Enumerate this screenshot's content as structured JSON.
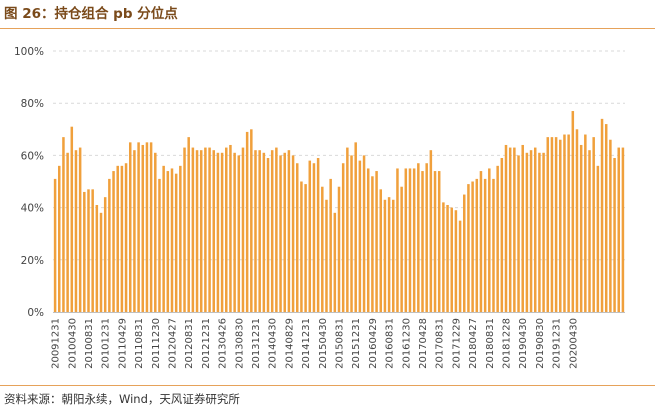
{
  "figure": {
    "title": "图 26：持仓组合 pb 分位点",
    "source": "资料来源：朝阳永续，Wind，天风证券研究所"
  },
  "colors": {
    "bar": "#f0a03c",
    "title": "#7a4a1a",
    "rule": "#e6a25a"
  },
  "chart_data": {
    "type": "bar",
    "title": "",
    "xlabel": "",
    "ylabel": "",
    "ylim": [
      0,
      100
    ],
    "y_ticks": [
      "0%",
      "20%",
      "40%",
      "60%",
      "80%",
      "100%"
    ],
    "y_tick_values": [
      0,
      20,
      40,
      60,
      80,
      100
    ],
    "grid": true,
    "legend": "none",
    "start_month": "2009-12",
    "x_tick_labels": [
      "20091231",
      "20100430",
      "20100831",
      "20101231",
      "20110429",
      "20110831",
      "20111230",
      "20120427",
      "20120831",
      "20121231",
      "20130426",
      "20130830",
      "20131231",
      "20140430",
      "20140829",
      "20141231",
      "20150430",
      "20150831",
      "20151231",
      "20160429",
      "20160831",
      "20161230",
      "20170428",
      "20170831",
      "20171229",
      "20180427",
      "20180831",
      "20181228",
      "20190430",
      "20190830",
      "20191231",
      "20200430"
    ],
    "series": [
      {
        "values": [
          51,
          56,
          67,
          61,
          71,
          62,
          63,
          46,
          47,
          47,
          41,
          38,
          44,
          51,
          54,
          56,
          56,
          57,
          65,
          62,
          65,
          64,
          65,
          65,
          61,
          51,
          56,
          54,
          55,
          53,
          56,
          63,
          67,
          63,
          62,
          62,
          63,
          63,
          62,
          61,
          61,
          63,
          64,
          61,
          60,
          63,
          69,
          70,
          62,
          62,
          61,
          59,
          62,
          63,
          60,
          61,
          62,
          60,
          57,
          50,
          49,
          58,
          57,
          59,
          48,
          43,
          51,
          38,
          48,
          57,
          63,
          60,
          65,
          58,
          60,
          55,
          52,
          54,
          47,
          43,
          44,
          43,
          55,
          48,
          55,
          55,
          55,
          57,
          54,
          57,
          62,
          54,
          54,
          42,
          41,
          40,
          39,
          35,
          45,
          49,
          50,
          51,
          54,
          51,
          55,
          51,
          56,
          59,
          64,
          63,
          63,
          60,
          64,
          61,
          62,
          63,
          61,
          61,
          67,
          67,
          67,
          66,
          68,
          68,
          77,
          70,
          64,
          68,
          62,
          67,
          56,
          74,
          72,
          66,
          59,
          63,
          63
        ]
      }
    ]
  }
}
